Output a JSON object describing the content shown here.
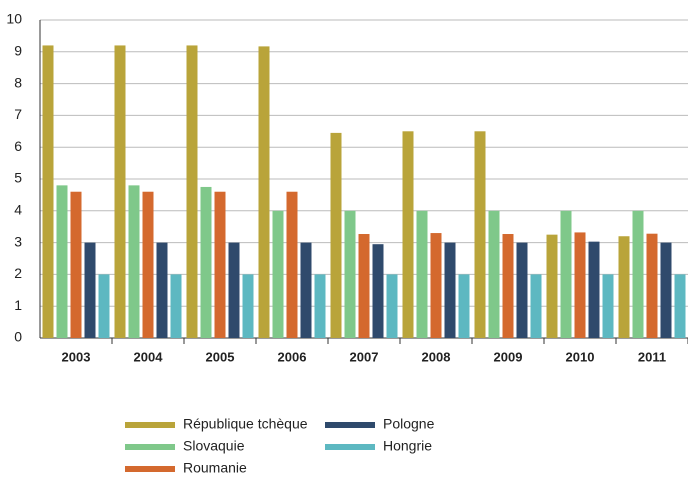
{
  "chart_data": {
    "type": "bar",
    "categories": [
      "2003",
      "2004",
      "2005",
      "2006",
      "2007",
      "2008",
      "2009",
      "2010",
      "2011"
    ],
    "series": [
      {
        "name": "République tchèque",
        "color": "#b9a43a",
        "values": [
          9.2,
          9.2,
          9.2,
          9.17,
          6.45,
          6.5,
          6.5,
          3.25,
          3.2
        ]
      },
      {
        "name": "Slovaquie",
        "color": "#7fc88a",
        "values": [
          4.8,
          4.8,
          4.75,
          4.0,
          4.0,
          4.0,
          4.0,
          4.0,
          4.0
        ]
      },
      {
        "name": "Roumanie",
        "color": "#d4692e",
        "values": [
          4.6,
          4.6,
          4.6,
          4.6,
          3.27,
          3.3,
          3.27,
          3.32,
          3.28
        ]
      },
      {
        "name": "Pologne",
        "color": "#2f4a6c",
        "values": [
          3.0,
          3.0,
          3.0,
          3.0,
          2.95,
          3.0,
          3.0,
          3.03,
          3.0
        ]
      },
      {
        "name": "Hongrie",
        "color": "#5db8c1",
        "values": [
          2,
          2,
          2,
          2,
          2,
          2,
          2,
          2,
          2
        ]
      }
    ],
    "ylim": [
      0,
      10
    ],
    "yticks": [
      0,
      1,
      2,
      3,
      4,
      5,
      6,
      7,
      8,
      9,
      10
    ],
    "grid": true
  }
}
